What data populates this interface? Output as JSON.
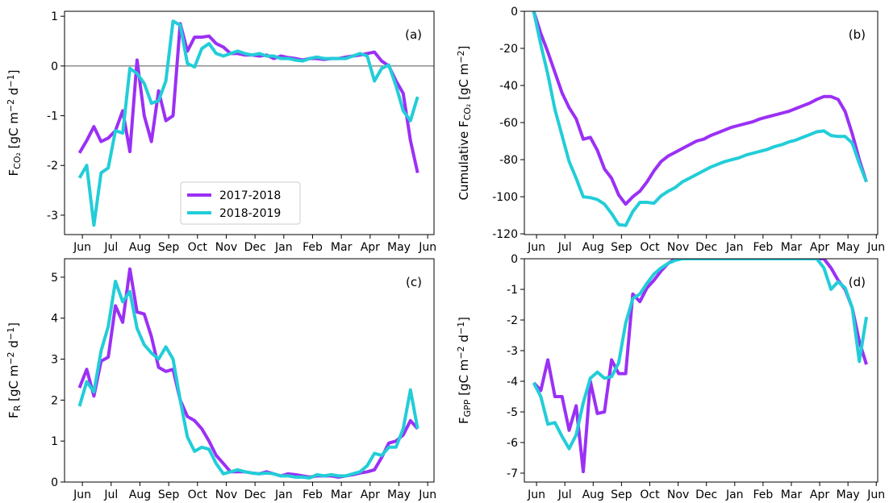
{
  "chart_data": [
    {
      "type": "line",
      "annotation": "(a)",
      "legend": "lower center",
      "hline": 0,
      "ylabel": [
        {
          "text": "F"
        },
        {
          "text": "CO₂",
          "style": "sub"
        },
        {
          "text": " [gC m"
        },
        {
          "text": "−2",
          "style": "sup"
        },
        {
          "text": " d"
        },
        {
          "text": "−1",
          "style": "sup"
        },
        {
          "text": "]"
        }
      ],
      "x": [
        -0.1,
        0.15,
        0.4,
        0.65,
        0.9,
        1.15,
        1.4,
        1.65,
        1.9,
        2.15,
        2.4,
        2.65,
        2.9,
        3.15,
        3.4,
        3.65,
        3.9,
        4.15,
        4.4,
        4.65,
        4.9,
        5.15,
        5.4,
        5.65,
        5.9,
        6.15,
        6.4,
        6.65,
        6.9,
        7.15,
        7.4,
        7.65,
        7.9,
        8.15,
        8.4,
        8.65,
        8.9,
        9.15,
        9.4,
        9.65,
        9.9,
        10.15,
        10.4,
        10.65,
        10.9,
        11.15,
        11.4,
        11.65
      ],
      "xlim": [
        -0.62,
        12.22
      ],
      "xticks": [
        {
          "value": 0,
          "label": "Jun"
        },
        {
          "value": 1,
          "label": "Jul"
        },
        {
          "value": 2,
          "label": "Aug"
        },
        {
          "value": 3,
          "label": "Sep"
        },
        {
          "value": 4,
          "label": "Oct"
        },
        {
          "value": 5,
          "label": "Nov"
        },
        {
          "value": 6,
          "label": "Dec"
        },
        {
          "value": 7,
          "label": "Jan"
        },
        {
          "value": 8,
          "label": "Feb"
        },
        {
          "value": 9,
          "label": "Mar"
        },
        {
          "value": 10,
          "label": "Apr"
        },
        {
          "value": 11,
          "label": "May"
        },
        {
          "value": 12,
          "label": "Jun"
        }
      ],
      "ylim": [
        -3.39,
        1.1
      ],
      "yticks": [
        -3,
        -2,
        -1,
        0,
        1
      ],
      "series": [
        {
          "name": "2017-2018",
          "color": "#9b30f5",
          "values": [
            -1.75,
            -1.5,
            -1.22,
            -1.52,
            -1.45,
            -1.3,
            -0.9,
            -1.72,
            0.12,
            -1.0,
            -1.52,
            -0.5,
            -1.1,
            -1.0,
            0.85,
            0.3,
            0.58,
            0.58,
            0.6,
            0.45,
            0.38,
            0.25,
            0.25,
            0.22,
            0.22,
            0.2,
            0.22,
            0.15,
            0.2,
            0.17,
            0.15,
            0.12,
            0.15,
            0.15,
            0.13,
            0.15,
            0.15,
            0.18,
            0.2,
            0.22,
            0.25,
            0.28,
            0.1,
            0.0,
            -0.3,
            -0.55,
            -1.5,
            -2.15
          ]
        },
        {
          "name": "2018-2019",
          "color": "#22cdd8",
          "values": [
            -2.25,
            -2.0,
            -3.2,
            -2.15,
            -2.05,
            -1.3,
            -1.35,
            -0.05,
            -0.15,
            -0.35,
            -0.75,
            -0.7,
            -0.3,
            0.9,
            0.82,
            0.05,
            -0.02,
            0.35,
            0.45,
            0.25,
            0.2,
            0.25,
            0.3,
            0.25,
            0.22,
            0.25,
            0.2,
            0.2,
            0.15,
            0.15,
            0.12,
            0.1,
            0.15,
            0.18,
            0.15,
            0.15,
            0.15,
            0.15,
            0.2,
            0.25,
            0.2,
            -0.3,
            -0.05,
            0.02,
            -0.4,
            -0.9,
            -1.1,
            -0.62
          ]
        }
      ]
    },
    {
      "type": "line",
      "annotation": "(b)",
      "ylabel": [
        {
          "text": "Cumulative F"
        },
        {
          "text": "CO₂",
          "style": "sub"
        },
        {
          "text": " [gC m"
        },
        {
          "text": "−2",
          "style": "sup"
        },
        {
          "text": "]"
        }
      ],
      "x": [
        -0.1,
        0.15,
        0.4,
        0.65,
        0.9,
        1.15,
        1.4,
        1.65,
        1.9,
        2.15,
        2.4,
        2.65,
        2.9,
        3.15,
        3.4,
        3.65,
        3.9,
        4.15,
        4.4,
        4.65,
        4.9,
        5.15,
        5.4,
        5.65,
        5.9,
        6.15,
        6.4,
        6.65,
        6.9,
        7.15,
        7.4,
        7.65,
        7.9,
        8.15,
        8.4,
        8.65,
        8.9,
        9.15,
        9.4,
        9.65,
        9.9,
        10.15,
        10.4,
        10.65,
        10.9,
        11.15,
        11.4,
        11.65
      ],
      "xlim": [
        -0.43,
        12.05
      ],
      "xticks": [
        {
          "value": 0,
          "label": "Jun"
        },
        {
          "value": 1,
          "label": "Jul"
        },
        {
          "value": 2,
          "label": "Aug"
        },
        {
          "value": 3,
          "label": "Sep"
        },
        {
          "value": 4,
          "label": "Oct"
        },
        {
          "value": 5,
          "label": "Nov"
        },
        {
          "value": 6,
          "label": "Dec"
        },
        {
          "value": 7,
          "label": "Jan"
        },
        {
          "value": 8,
          "label": "Feb"
        },
        {
          "value": 9,
          "label": "Mar"
        },
        {
          "value": 10,
          "label": "Apr"
        },
        {
          "value": 11,
          "label": "May"
        },
        {
          "value": 12,
          "label": "Jun"
        }
      ],
      "ylim": [
        -120.4,
        0
      ],
      "yticks": [
        -120,
        -100,
        -80,
        -60,
        -40,
        -20,
        0
      ],
      "series": [
        {
          "name": "2017-2018",
          "color": "#9b30f5",
          "values": [
            0,
            -12,
            -22,
            -33,
            -44,
            -52,
            -58,
            -69,
            -68,
            -75,
            -85,
            -90,
            -99,
            -104,
            -100,
            -97,
            -92,
            -86,
            -81,
            -78,
            -76,
            -74,
            -72,
            -70,
            -69,
            -67,
            -65.5,
            -64,
            -62.5,
            -61.5,
            -60.5,
            -59.5,
            -58,
            -57,
            -56,
            -55,
            -54,
            -52.5,
            -51,
            -49.5,
            -47.5,
            -46,
            -46,
            -47.5,
            -54,
            -66,
            -80,
            -92
          ]
        },
        {
          "name": "2018-2019",
          "color": "#22cdd8",
          "values": [
            0,
            -18,
            -34,
            -53,
            -67,
            -81,
            -90,
            -100,
            -100.5,
            -101.5,
            -104,
            -109,
            -115,
            -115.5,
            -108,
            -103,
            -103,
            -103.5,
            -99.5,
            -97,
            -95,
            -92,
            -90,
            -88,
            -86,
            -84,
            -82.5,
            -81,
            -80,
            -79,
            -77.5,
            -76.5,
            -75.5,
            -74.5,
            -73,
            -72,
            -70.5,
            -69.5,
            -68,
            -66.5,
            -65,
            -64.5,
            -67,
            -67.5,
            -67.5,
            -71,
            -82,
            -92
          ]
        }
      ]
    },
    {
      "type": "line",
      "annotation": "(c)",
      "ylabel": [
        {
          "text": "F"
        },
        {
          "text": "R",
          "style": "sub"
        },
        {
          "text": " [gC m"
        },
        {
          "text": "−2",
          "style": "sup"
        },
        {
          "text": " d"
        },
        {
          "text": "−1",
          "style": "sup"
        },
        {
          "text": "]"
        }
      ],
      "x": [
        -0.1,
        0.15,
        0.4,
        0.65,
        0.9,
        1.15,
        1.4,
        1.65,
        1.9,
        2.15,
        2.4,
        2.65,
        2.9,
        3.15,
        3.4,
        3.65,
        3.9,
        4.15,
        4.4,
        4.65,
        4.9,
        5.15,
        5.4,
        5.65,
        5.9,
        6.15,
        6.4,
        6.65,
        6.9,
        7.15,
        7.4,
        7.65,
        7.9,
        8.15,
        8.4,
        8.65,
        8.9,
        9.15,
        9.4,
        9.65,
        9.9,
        10.15,
        10.4,
        10.65,
        10.9,
        11.15,
        11.4,
        11.65
      ],
      "xlim": [
        -0.62,
        12.22
      ],
      "xticks": [
        {
          "value": 0,
          "label": "Jun"
        },
        {
          "value": 1,
          "label": "Jul"
        },
        {
          "value": 2,
          "label": "Aug"
        },
        {
          "value": 3,
          "label": "Sep"
        },
        {
          "value": 4,
          "label": "Oct"
        },
        {
          "value": 5,
          "label": "Nov"
        },
        {
          "value": 6,
          "label": "Dec"
        },
        {
          "value": 7,
          "label": "Jan"
        },
        {
          "value": 8,
          "label": "Feb"
        },
        {
          "value": 9,
          "label": "Mar"
        },
        {
          "value": 10,
          "label": "Apr"
        },
        {
          "value": 11,
          "label": "May"
        },
        {
          "value": 12,
          "label": "Jun"
        }
      ],
      "ylim": [
        0,
        5.45
      ],
      "yticks": [
        0,
        1,
        2,
        3,
        4,
        5
      ],
      "series": [
        {
          "name": "2017-2018",
          "color": "#9b30f5",
          "values": [
            2.3,
            2.75,
            2.1,
            2.95,
            3.05,
            4.3,
            3.9,
            5.2,
            4.15,
            4.1,
            3.55,
            2.8,
            2.7,
            2.75,
            2.0,
            1.6,
            1.5,
            1.3,
            1.0,
            0.65,
            0.45,
            0.25,
            0.25,
            0.25,
            0.22,
            0.2,
            0.25,
            0.2,
            0.15,
            0.2,
            0.18,
            0.15,
            0.12,
            0.15,
            0.15,
            0.15,
            0.12,
            0.15,
            0.18,
            0.22,
            0.25,
            0.3,
            0.6,
            0.95,
            1.0,
            1.15,
            1.5,
            1.3
          ]
        },
        {
          "name": "2018-2019",
          "color": "#22cdd8",
          "values": [
            1.85,
            2.45,
            2.2,
            3.2,
            3.8,
            4.9,
            4.4,
            4.65,
            3.75,
            3.35,
            3.15,
            3.0,
            3.3,
            3.0,
            2.0,
            1.1,
            0.75,
            0.85,
            0.8,
            0.45,
            0.2,
            0.25,
            0.3,
            0.25,
            0.22,
            0.2,
            0.22,
            0.2,
            0.15,
            0.15,
            0.12,
            0.12,
            0.1,
            0.18,
            0.15,
            0.18,
            0.15,
            0.15,
            0.2,
            0.25,
            0.4,
            0.7,
            0.65,
            0.85,
            0.85,
            1.3,
            2.25,
            1.3
          ]
        }
      ]
    },
    {
      "type": "line",
      "annotation": "(d)",
      "ylabel": [
        {
          "text": "F"
        },
        {
          "text": "GPP",
          "style": "sub"
        },
        {
          "text": " [gC m"
        },
        {
          "text": "−2",
          "style": "sup"
        },
        {
          "text": " d"
        },
        {
          "text": "−1",
          "style": "sup"
        },
        {
          "text": "]"
        }
      ],
      "x": [
        -0.1,
        0.15,
        0.4,
        0.65,
        0.9,
        1.15,
        1.4,
        1.65,
        1.9,
        2.15,
        2.4,
        2.65,
        2.9,
        3.15,
        3.4,
        3.65,
        3.9,
        4.15,
        4.4,
        4.65,
        4.9,
        5.15,
        5.4,
        5.65,
        5.9,
        6.15,
        6.4,
        6.65,
        6.9,
        7.15,
        7.4,
        7.65,
        7.9,
        8.15,
        8.4,
        8.65,
        8.9,
        9.15,
        9.4,
        9.65,
        9.9,
        10.15,
        10.4,
        10.65,
        10.9,
        11.15,
        11.4,
        11.65
      ],
      "xlim": [
        -0.43,
        12.05
      ],
      "xticks": [
        {
          "value": 0,
          "label": "Jun"
        },
        {
          "value": 1,
          "label": "Jul"
        },
        {
          "value": 2,
          "label": "Aug"
        },
        {
          "value": 3,
          "label": "Sep"
        },
        {
          "value": 4,
          "label": "Oct"
        },
        {
          "value": 5,
          "label": "Nov"
        },
        {
          "value": 6,
          "label": "Dec"
        },
        {
          "value": 7,
          "label": "Jan"
        },
        {
          "value": 8,
          "label": "Feb"
        },
        {
          "value": 9,
          "label": "Mar"
        },
        {
          "value": 10,
          "label": "Apr"
        },
        {
          "value": 11,
          "label": "May"
        },
        {
          "value": 12,
          "label": "Jun"
        }
      ],
      "ylim": [
        -7.29,
        0
      ],
      "yticks": [
        -7,
        -6,
        -5,
        -4,
        -3,
        -2,
        -1,
        0
      ],
      "series": [
        {
          "name": "2017-2018",
          "color": "#9b30f5",
          "values": [
            -4.05,
            -4.3,
            -3.3,
            -4.5,
            -4.5,
            -5.6,
            -4.8,
            -6.95,
            -4.0,
            -5.05,
            -5.0,
            -3.3,
            -3.75,
            -3.75,
            -1.15,
            -1.4,
            -0.95,
            -0.7,
            -0.4,
            -0.15,
            0,
            0,
            0,
            0,
            0,
            0,
            0,
            0,
            0,
            0,
            0,
            0,
            0,
            0,
            0,
            0,
            0,
            0,
            0,
            0,
            0,
            0,
            -0.3,
            -0.7,
            -1.0,
            -1.6,
            -2.7,
            -3.45
          ]
        },
        {
          "name": "2018-2019",
          "color": "#22cdd8",
          "values": [
            -4.05,
            -4.5,
            -5.4,
            -5.35,
            -5.8,
            -6.2,
            -5.75,
            -4.7,
            -3.9,
            -3.7,
            -3.9,
            -3.85,
            -3.4,
            -2.1,
            -1.3,
            -1.15,
            -0.8,
            -0.5,
            -0.3,
            -0.15,
            -0.05,
            0,
            0,
            0,
            0,
            0,
            0,
            0,
            0,
            0,
            0,
            0,
            0,
            0,
            0,
            0,
            0,
            0,
            0,
            0,
            0,
            -0.3,
            -1.0,
            -0.75,
            -0.95,
            -1.6,
            -3.35,
            -1.9
          ]
        }
      ]
    }
  ]
}
